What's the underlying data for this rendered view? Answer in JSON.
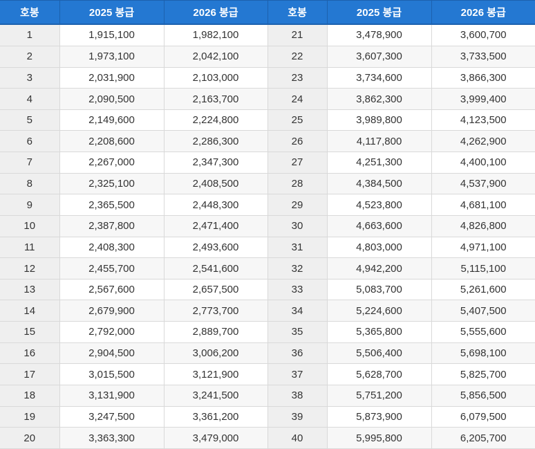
{
  "colors": {
    "header_bg": "#2478d2",
    "header_border": "#1c61ae",
    "header_text": "#ffffff",
    "step_col_bg": "#efefef",
    "row_alt_bg": "#f7f7f7",
    "cell_border": "#d9d9d9",
    "text": "#333333"
  },
  "chart_data": {
    "type": "table",
    "columns": [
      "호봉",
      "2025 봉급",
      "2026 봉급",
      "호봉",
      "2025 봉급",
      "2026 봉급"
    ],
    "rows": [
      [
        "1",
        "1,915,100",
        "1,982,100",
        "21",
        "3,478,900",
        "3,600,700"
      ],
      [
        "2",
        "1,973,100",
        "2,042,100",
        "22",
        "3,607,300",
        "3,733,500"
      ],
      [
        "3",
        "2,031,900",
        "2,103,000",
        "23",
        "3,734,600",
        "3,866,300"
      ],
      [
        "4",
        "2,090,500",
        "2,163,700",
        "24",
        "3,862,300",
        "3,999,400"
      ],
      [
        "5",
        "2,149,600",
        "2,224,800",
        "25",
        "3,989,800",
        "4,123,500"
      ],
      [
        "6",
        "2,208,600",
        "2,286,300",
        "26",
        "4,117,800",
        "4,262,900"
      ],
      [
        "7",
        "2,267,000",
        "2,347,300",
        "27",
        "4,251,300",
        "4,400,100"
      ],
      [
        "8",
        "2,325,100",
        "2,408,500",
        "28",
        "4,384,500",
        "4,537,900"
      ],
      [
        "9",
        "2,365,500",
        "2,448,300",
        "29",
        "4,523,800",
        "4,681,100"
      ],
      [
        "10",
        "2,387,800",
        "2,471,400",
        "30",
        "4,663,600",
        "4,826,800"
      ],
      [
        "11",
        "2,408,300",
        "2,493,600",
        "31",
        "4,803,000",
        "4,971,100"
      ],
      [
        "12",
        "2,455,700",
        "2,541,600",
        "32",
        "4,942,200",
        "5,115,100"
      ],
      [
        "13",
        "2,567,600",
        "2,657,500",
        "33",
        "5,083,700",
        "5,261,600"
      ],
      [
        "14",
        "2,679,900",
        "2,773,700",
        "34",
        "5,224,600",
        "5,407,500"
      ],
      [
        "15",
        "2,792,000",
        "2,889,700",
        "35",
        "5,365,800",
        "5,555,600"
      ],
      [
        "16",
        "2,904,500",
        "3,006,200",
        "36",
        "5,506,400",
        "5,698,100"
      ],
      [
        "17",
        "3,015,500",
        "3,121,900",
        "37",
        "5,628,700",
        "5,825,700"
      ],
      [
        "18",
        "3,131,900",
        "3,241,500",
        "38",
        "5,751,200",
        "5,856,500"
      ],
      [
        "19",
        "3,247,500",
        "3,361,200",
        "39",
        "5,873,900",
        "6,079,500"
      ],
      [
        "20",
        "3,363,300",
        "3,479,000",
        "40",
        "5,995,800",
        "6,205,700"
      ]
    ]
  }
}
